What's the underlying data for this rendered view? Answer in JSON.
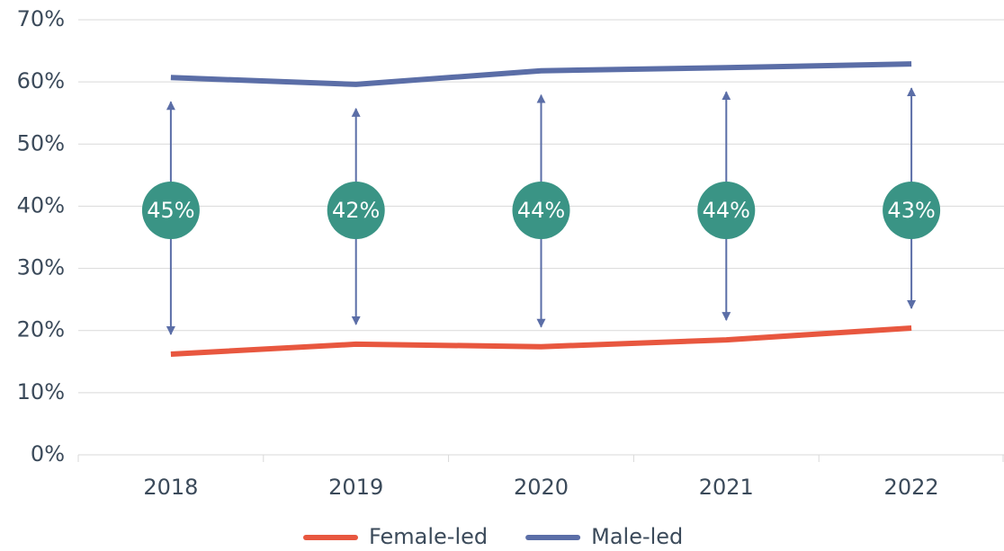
{
  "chart_data": {
    "type": "line",
    "categories": [
      "2018",
      "2019",
      "2020",
      "2021",
      "2022"
    ],
    "series": [
      {
        "name": "Female-led",
        "color": "#e8573f",
        "values": [
          16.2,
          17.8,
          17.4,
          18.5,
          20.4
        ]
      },
      {
        "name": "Male-led",
        "color": "#5b6ea7",
        "values": [
          60.7,
          59.6,
          61.8,
          62.3,
          62.9
        ]
      }
    ],
    "gap": {
      "color": "#3a9485",
      "values": [
        45,
        42,
        44,
        44,
        43
      ],
      "value_labels": [
        "45%",
        "42%",
        "44%",
        "44%",
        "43%"
      ]
    },
    "ylim": [
      0,
      70
    ],
    "yticks": [
      {
        "value": 0,
        "label": "0%"
      },
      {
        "value": 10,
        "label": "10%"
      },
      {
        "value": 20,
        "label": "20%"
      },
      {
        "value": 30,
        "label": "30%"
      },
      {
        "value": 40,
        "label": "40%"
      },
      {
        "value": 50,
        "label": "50%"
      },
      {
        "value": 60,
        "label": "60%"
      },
      {
        "value": 70,
        "label": "70%"
      }
    ],
    "grid": true,
    "legend": "bottom"
  }
}
